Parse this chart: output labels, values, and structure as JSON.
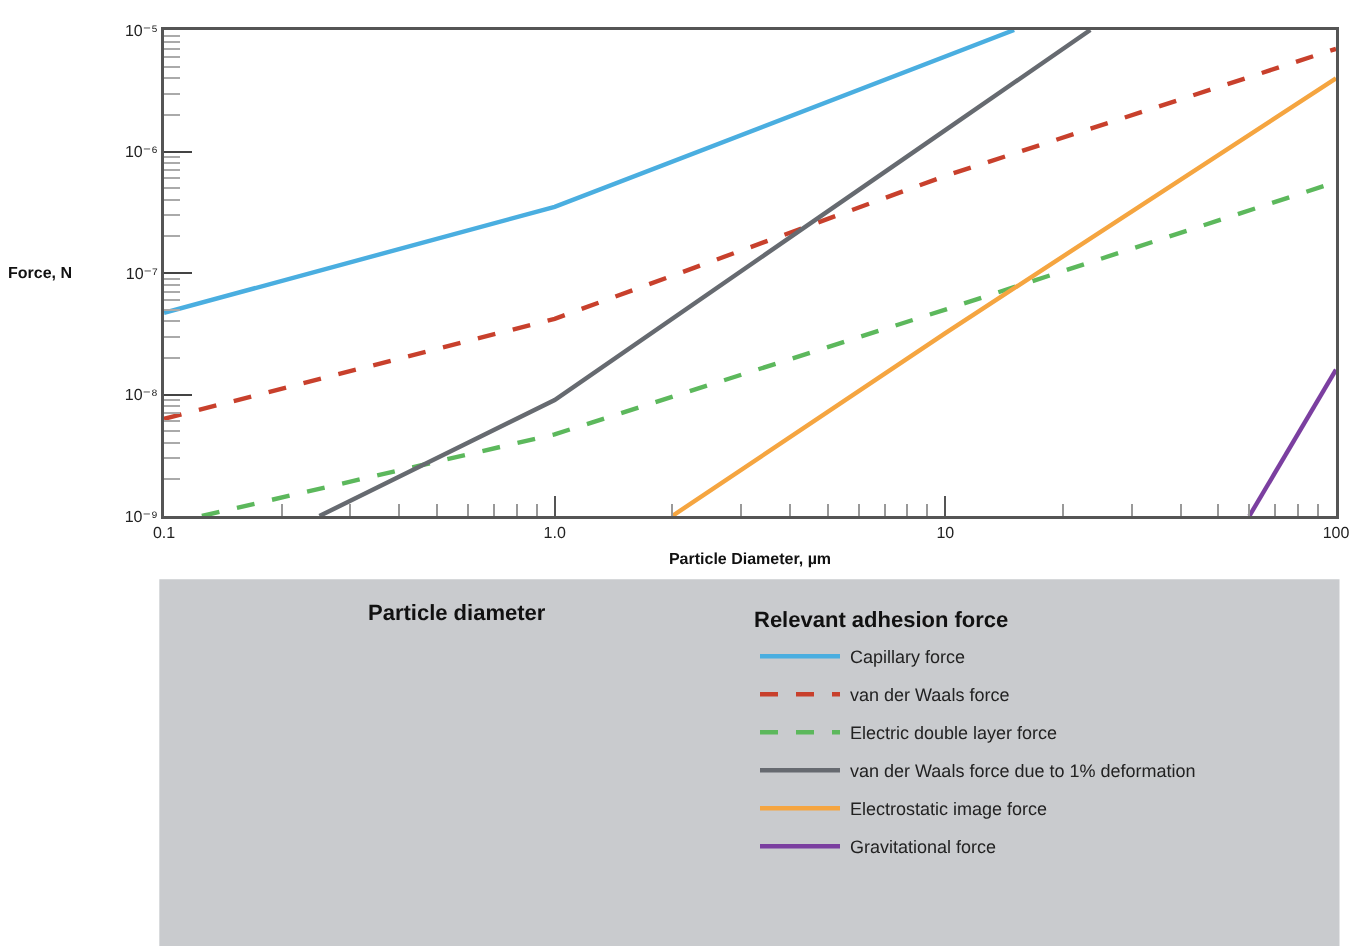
{
  "chart_data": {
    "type": "line",
    "xlabel": "Particle Diameter, µm",
    "ylabel": "Force, N",
    "legend_title": "Relevant adhesion force",
    "annotations": [
      "Particle diameter"
    ],
    "log": "xy",
    "xlim": [
      0.1,
      100
    ],
    "ylim": [
      1e-09,
      1e-05
    ],
    "xticks": [
      {
        "value": 0.1,
        "label": "0.1"
      },
      {
        "value": 1,
        "label": "1.0"
      },
      10,
      100
    ],
    "yticks": [
      {
        "value": 1e-09,
        "label": "10⁻⁹"
      },
      {
        "value": 1e-08,
        "label": "10⁻⁸"
      },
      {
        "value": 1e-07,
        "label": "10⁻⁷"
      },
      {
        "value": 1e-06,
        "label": "10⁻⁶"
      },
      {
        "value": 1e-05,
        "label": "10⁻⁵"
      }
    ],
    "grid": false,
    "legend": "bottom",
    "marker": "none",
    "series": [
      {
        "name": "Capillary force",
        "color": "#4aaee0",
        "line_style": "solid",
        "x": [
          0.1,
          1,
          15
        ],
        "values": [
          4.7e-08,
          3.5e-07,
          1e-05
        ]
      },
      {
        "name": "van der Waals force",
        "color": "#c8402c",
        "line_style": "dashed",
        "x": [
          0.1,
          1,
          10,
          100
        ],
        "values": [
          6.3e-09,
          4.2e-08,
          6.3e-07,
          7e-06
        ]
      },
      {
        "name": "Electric double layer force",
        "color": "#5cb85c",
        "line_style": "dashed",
        "x": [
          0.125,
          1,
          10,
          100
        ],
        "values": [
          1e-09,
          4.7e-09,
          5e-08,
          5.6e-07
        ]
      },
      {
        "name": "van der Waals force due to 1% deformation",
        "color": "#666a70",
        "line_style": "solid",
        "x": [
          0.25,
          1,
          10,
          23.5
        ],
        "values": [
          1e-09,
          9e-09,
          1.5e-06,
          1e-05
        ]
      },
      {
        "name": "Electrostatic image force",
        "color": "#f5a540",
        "line_style": "solid",
        "x": [
          2,
          10,
          100
        ],
        "values": [
          1e-09,
          3.2e-08,
          4e-06
        ]
      },
      {
        "name": "Gravitational force",
        "color": "#7b3fa0",
        "line_style": "solid",
        "x": [
          60,
          100
        ],
        "values": [
          1e-09,
          1.6e-08
        ]
      }
    ]
  }
}
